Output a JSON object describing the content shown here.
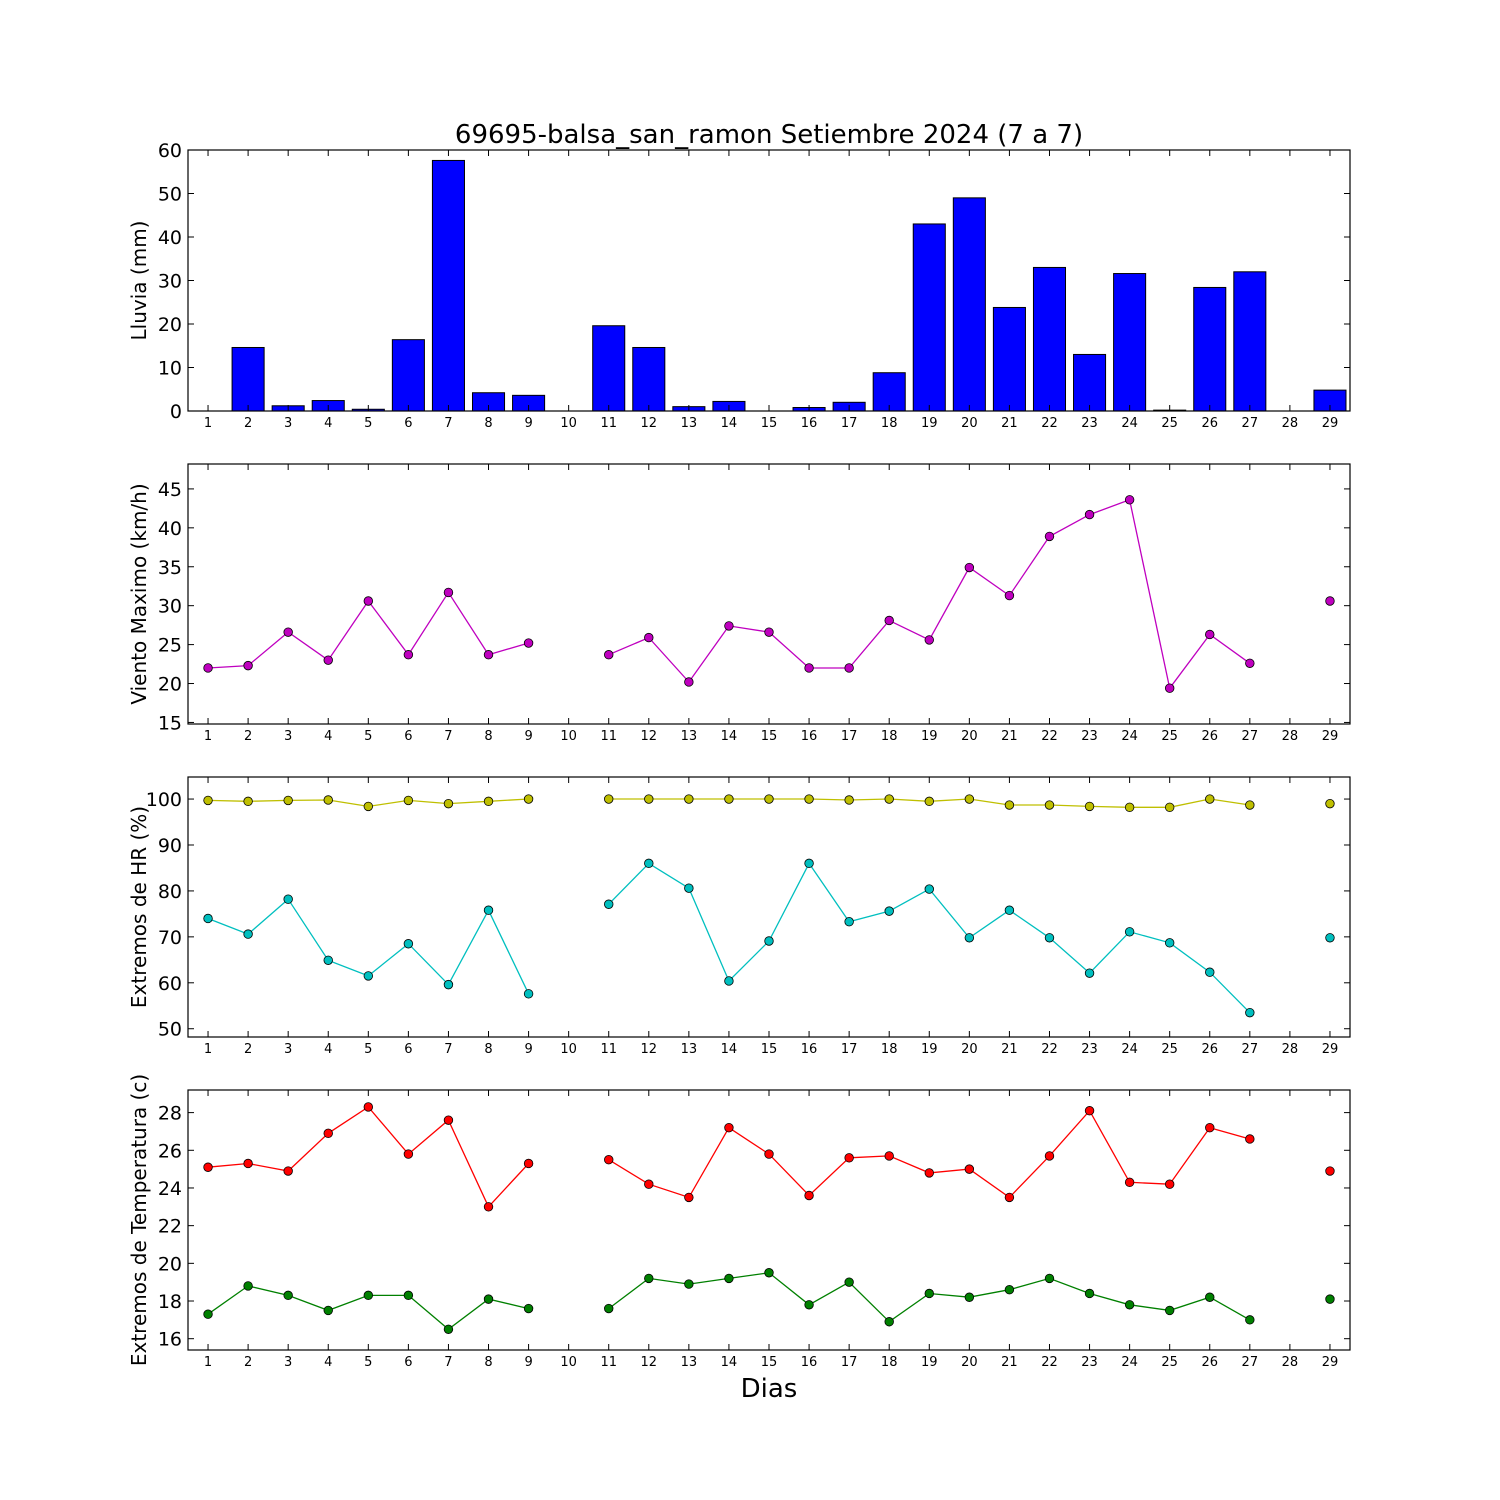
{
  "chart_data": [
    {
      "type": "bar",
      "title": "69695-balsa_san_ramon Setiembre 2024  (7 a 7)",
      "ylabel": "Lluvia (mm)",
      "xlabel": "",
      "ylim": [
        0,
        60
      ],
      "yticks": [
        0,
        10,
        20,
        30,
        40,
        50,
        60
      ],
      "x": [
        1,
        2,
        3,
        4,
        5,
        6,
        7,
        8,
        9,
        10,
        11,
        12,
        13,
        14,
        15,
        16,
        17,
        18,
        19,
        20,
        21,
        22,
        23,
        24,
        25,
        26,
        27,
        28,
        29
      ],
      "xticks": [
        "1",
        "2",
        "3",
        "4",
        "5",
        "6",
        "7",
        "8",
        "9",
        "10",
        "11",
        "12",
        "13",
        "14",
        "15",
        "16",
        "17",
        "18",
        "19",
        "20",
        "21",
        "22",
        "23",
        "24",
        "25",
        "26",
        "27",
        "28",
        "29"
      ],
      "series": [
        {
          "color": "#0000ff",
          "values": [
            0,
            14.6,
            1.2,
            2.4,
            0.4,
            16.4,
            57.6,
            4.2,
            3.6,
            null,
            19.6,
            14.6,
            1.0,
            2.2,
            0,
            0.8,
            2.0,
            8.8,
            43.0,
            49.0,
            23.8,
            33.0,
            13.0,
            31.6,
            0.2,
            28.4,
            32.0,
            null,
            4.8
          ]
        }
      ]
    },
    {
      "type": "line",
      "ylabel": "Viento Maximo (km/h)",
      "xlabel": "",
      "ylim": [
        14.8,
        48.2
      ],
      "yticks": [
        15,
        20,
        25,
        30,
        35,
        40,
        45
      ],
      "x": [
        1,
        2,
        3,
        4,
        5,
        6,
        7,
        8,
        9,
        10,
        11,
        12,
        13,
        14,
        15,
        16,
        17,
        18,
        19,
        20,
        21,
        22,
        23,
        24,
        25,
        26,
        27,
        28,
        29
      ],
      "xticks": [
        "1",
        "2",
        "3",
        "4",
        "5",
        "6",
        "7",
        "8",
        "9",
        "10",
        "11",
        "12",
        "13",
        "14",
        "15",
        "16",
        "17",
        "18",
        "19",
        "20",
        "21",
        "22",
        "23",
        "24",
        "25",
        "26",
        "27",
        "28",
        "29"
      ],
      "series": [
        {
          "color": "#bf00bf",
          "values": [
            22.0,
            22.3,
            26.6,
            23.0,
            30.6,
            23.7,
            31.7,
            23.7,
            25.2,
            null,
            23.7,
            25.9,
            20.2,
            27.4,
            26.6,
            22.0,
            22.0,
            28.1,
            25.6,
            34.9,
            31.3,
            38.9,
            41.7,
            43.6,
            19.4,
            26.3,
            22.6,
            null,
            30.6
          ]
        }
      ]
    },
    {
      "type": "line",
      "ylabel": "Extremos de HR (%)",
      "xlabel": "",
      "ylim": [
        48.2,
        104.8
      ],
      "yticks": [
        50,
        60,
        70,
        80,
        90,
        100
      ],
      "x": [
        1,
        2,
        3,
        4,
        5,
        6,
        7,
        8,
        9,
        10,
        11,
        12,
        13,
        14,
        15,
        16,
        17,
        18,
        19,
        20,
        21,
        22,
        23,
        24,
        25,
        26,
        27,
        28,
        29
      ],
      "xticks": [
        "1",
        "2",
        "3",
        "4",
        "5",
        "6",
        "7",
        "8",
        "9",
        "10",
        "11",
        "12",
        "13",
        "14",
        "15",
        "16",
        "17",
        "18",
        "19",
        "20",
        "21",
        "22",
        "23",
        "24",
        "25",
        "26",
        "27",
        "28",
        "29"
      ],
      "series": [
        {
          "color": "#bfbf00",
          "values": [
            99.7,
            99.5,
            99.7,
            99.8,
            98.4,
            99.7,
            99.0,
            99.5,
            100.0,
            null,
            100.0,
            100.0,
            100.0,
            100.0,
            100.0,
            100.0,
            99.8,
            100.0,
            99.5,
            100.0,
            98.7,
            98.7,
            98.4,
            98.2,
            98.2,
            100.0,
            98.7,
            null,
            99.0
          ]
        },
        {
          "color": "#00bfbf",
          "values": [
            74.0,
            70.6,
            78.2,
            64.9,
            61.5,
            68.5,
            59.6,
            75.8,
            57.6,
            null,
            77.1,
            86.0,
            80.6,
            60.4,
            69.1,
            86.0,
            73.3,
            75.6,
            80.4,
            69.8,
            75.8,
            69.8,
            62.1,
            71.1,
            68.7,
            62.3,
            53.5,
            null,
            69.8
          ]
        }
      ]
    },
    {
      "type": "line",
      "ylabel": "Extremos de Temperatura (c)",
      "xlabel": "Dias",
      "ylim": [
        15.4,
        29.2
      ],
      "yticks": [
        16,
        18,
        20,
        22,
        24,
        26,
        28
      ],
      "x": [
        1,
        2,
        3,
        4,
        5,
        6,
        7,
        8,
        9,
        10,
        11,
        12,
        13,
        14,
        15,
        16,
        17,
        18,
        19,
        20,
        21,
        22,
        23,
        24,
        25,
        26,
        27,
        28,
        29
      ],
      "xticks": [
        "1",
        "2",
        "3",
        "4",
        "5",
        "6",
        "7",
        "8",
        "9",
        "10",
        "11",
        "12",
        "13",
        "14",
        "15",
        "16",
        "17",
        "18",
        "19",
        "20",
        "21",
        "22",
        "23",
        "24",
        "25",
        "26",
        "27",
        "28",
        "29"
      ],
      "series": [
        {
          "color": "#ff0000",
          "values": [
            25.1,
            25.3,
            24.9,
            26.9,
            28.3,
            25.8,
            27.6,
            23.0,
            25.3,
            null,
            25.5,
            24.2,
            23.5,
            27.2,
            25.8,
            23.6,
            25.6,
            25.7,
            24.8,
            25.0,
            23.5,
            25.7,
            28.1,
            24.3,
            24.2,
            27.2,
            26.6,
            null,
            24.9
          ]
        },
        {
          "color": "#008000",
          "values": [
            17.3,
            18.8,
            18.3,
            17.5,
            18.3,
            18.3,
            16.5,
            18.1,
            17.6,
            null,
            17.6,
            19.2,
            18.9,
            19.2,
            19.5,
            17.8,
            19.0,
            16.9,
            18.4,
            18.2,
            18.6,
            19.2,
            18.4,
            17.8,
            17.5,
            18.2,
            17.0,
            null,
            18.1
          ]
        }
      ]
    }
  ]
}
